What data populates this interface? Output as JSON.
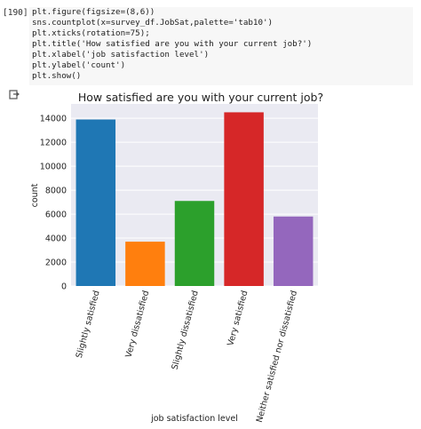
{
  "cell": {
    "prompt": "[190]",
    "code_lines": [
      "plt.figure(figsize=(8,6))",
      "sns.countplot(x=survey_df.JobSat,palette='tab10')",
      "plt.xticks(rotation=75);",
      "plt.title('How satisfied are you with your current job?')",
      "plt.xlabel('job satisfaction level')",
      "plt.ylabel('count')",
      "plt.show()"
    ]
  },
  "output": {
    "icon": "output-arrow-icon"
  },
  "chart_data": {
    "type": "bar",
    "title": "How satisfied are you with your current job?",
    "xlabel": "job satisfaction level",
    "ylabel": "count",
    "categories": [
      "Slightly satisfied",
      "Very dissatisfied",
      "Slightly dissatisfied",
      "Very satisfied",
      "Neither satisfied nor dissatisfied"
    ],
    "values": [
      13900,
      3700,
      7100,
      14500,
      5800
    ],
    "colors": [
      "#1f77b4",
      "#ff7f0e",
      "#2ca02c",
      "#d62728",
      "#9467bd"
    ],
    "ylim": [
      0,
      15200
    ],
    "yticks": [
      0,
      2000,
      4000,
      6000,
      8000,
      10000,
      12000,
      14000
    ],
    "grid": true,
    "background": "#eaeaf2"
  }
}
